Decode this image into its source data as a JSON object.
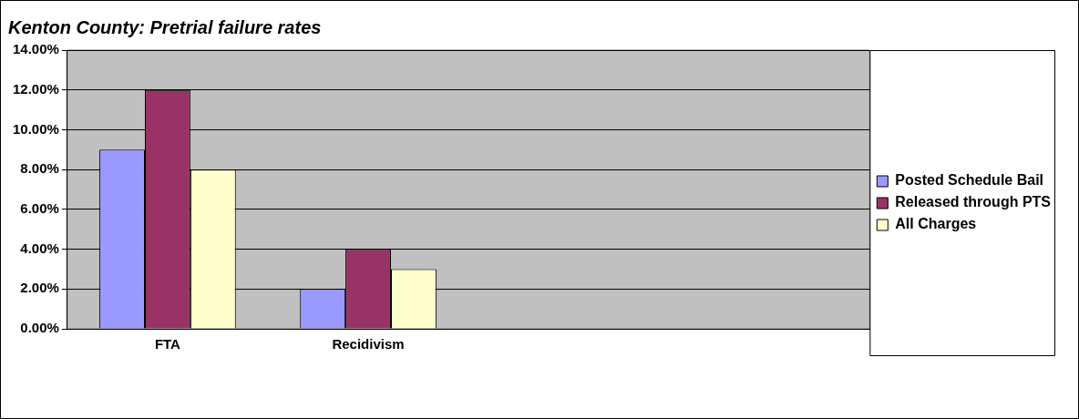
{
  "chart_data": {
    "type": "bar",
    "title": "Kenton County: Pretrial failure rates",
    "categories": [
      "FTA",
      "Recidivism",
      null,
      null
    ],
    "series": [
      {
        "name": "Posted Schedule Bail",
        "color": "#9999ff",
        "values": [
          9,
          2,
          null,
          null
        ]
      },
      {
        "name": "Released through PTS",
        "color": "#993366",
        "values": [
          12,
          4,
          null,
          null
        ]
      },
      {
        "name": "All Charges",
        "color": "#ffffcc",
        "values": [
          8,
          3,
          null,
          null
        ]
      }
    ],
    "ylim": [
      0,
      14
    ],
    "yticks": [
      {
        "value": 0,
        "label": "0.00%"
      },
      {
        "value": 2,
        "label": "2.00%"
      },
      {
        "value": 4,
        "label": "4.00%"
      },
      {
        "value": 6,
        "label": "6.00%"
      },
      {
        "value": 8,
        "label": "8.00%"
      },
      {
        "value": 10,
        "label": "10.00%"
      },
      {
        "value": 12,
        "label": "12.00%"
      },
      {
        "value": 14,
        "label": "14.00%"
      }
    ],
    "grid": "y",
    "legend": "right"
  }
}
